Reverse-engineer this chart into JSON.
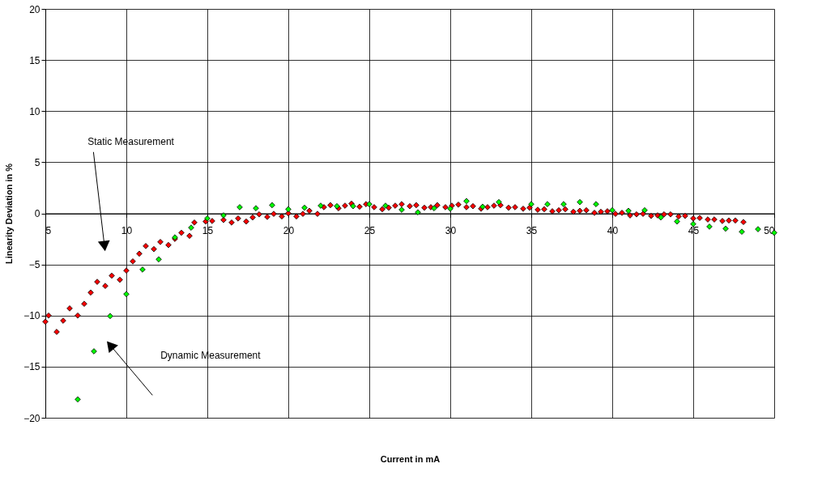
{
  "chart_data": {
    "type": "scatter",
    "xlabel": "Current in mA",
    "ylabel": "Linearity Deviation in %",
    "xlim": [
      5,
      50
    ],
    "xticks": [
      5,
      10,
      15,
      20,
      25,
      30,
      35,
      40,
      45,
      50
    ],
    "ylim": [
      -20,
      20
    ],
    "yticks": [
      -20,
      -15,
      -10,
      -5,
      0,
      5,
      10,
      15,
      20
    ],
    "grid": true,
    "marker": "diamond",
    "annotations": [
      {
        "text": "Static Measurement",
        "x": 8.65,
        "y": -3.2
      },
      "Dynamic Measurement"
    ],
    "series": [
      {
        "color": "#ff0000",
        "x": [
          5.0,
          5.2,
          5.7,
          6.1,
          6.5,
          7.0,
          7.4,
          7.8,
          8.2,
          8.7,
          9.1,
          9.6,
          10.0,
          10.4,
          10.8,
          11.2,
          11.7,
          12.1,
          12.6,
          13.0,
          13.4,
          13.9,
          14.2,
          14.9,
          15.3,
          16.0,
          16.5,
          16.9,
          17.4,
          17.8,
          18.2,
          18.7,
          19.1,
          19.6,
          20.0,
          20.5,
          20.9,
          21.3,
          21.8,
          22.2,
          22.6,
          23.1,
          23.5,
          23.9,
          24.4,
          24.8,
          25.3,
          25.8,
          26.2,
          26.6,
          27.0,
          27.5,
          27.9,
          28.4,
          28.8,
          29.2,
          29.7,
          30.1,
          30.5,
          31.0,
          31.4,
          31.9,
          32.3,
          32.7,
          33.1,
          33.6,
          34.0,
          34.5,
          34.9,
          35.4,
          35.8,
          36.3,
          36.7,
          37.1,
          37.6,
          38.0,
          38.4,
          38.9,
          39.3,
          39.7,
          40.2,
          40.6,
          41.1,
          41.5,
          41.9,
          42.4,
          42.8,
          43.2,
          43.6,
          44.1,
          44.5,
          45.0,
          45.4,
          45.9,
          46.3,
          46.8,
          47.2,
          47.6,
          48.1
        ],
        "values": [
          -10.6,
          -10.0,
          -11.6,
          -10.5,
          -9.3,
          -10.0,
          -8.85,
          -7.75,
          -6.7,
          -7.1,
          -6.1,
          -6.5,
          -5.6,
          -4.7,
          -3.95,
          -3.2,
          -3.5,
          -2.8,
          -3.1,
          -2.5,
          -1.9,
          -2.2,
          -0.9,
          -0.8,
          -0.75,
          -0.65,
          -0.9,
          -0.5,
          -0.8,
          -0.4,
          -0.1,
          -0.35,
          -0.05,
          -0.3,
          0.0,
          -0.3,
          -0.05,
          0.25,
          -0.05,
          0.6,
          0.8,
          0.5,
          0.75,
          0.95,
          0.65,
          0.9,
          0.6,
          0.4,
          0.55,
          0.75,
          0.9,
          0.7,
          0.8,
          0.55,
          0.6,
          0.8,
          0.6,
          0.75,
          0.85,
          0.6,
          0.7,
          0.45,
          0.6,
          0.75,
          0.8,
          0.55,
          0.6,
          0.45,
          0.55,
          0.35,
          0.4,
          0.2,
          0.3,
          0.4,
          0.15,
          0.25,
          0.3,
          0.05,
          0.15,
          0.2,
          -0.05,
          0.05,
          -0.2,
          -0.1,
          -0.05,
          -0.25,
          -0.2,
          -0.1,
          -0.1,
          -0.3,
          -0.25,
          -0.5,
          -0.45,
          -0.6,
          -0.6,
          -0.75,
          -0.7,
          -0.7,
          -0.85
        ]
      },
      {
        "color": "#00ff00",
        "x": [
          7,
          8,
          9,
          10,
          11,
          12,
          13,
          14,
          15,
          16,
          17,
          18,
          19,
          20,
          21,
          22,
          23,
          24,
          25,
          26,
          27,
          28,
          29,
          30,
          31,
          32,
          33,
          35,
          36,
          37,
          38,
          39,
          40,
          41,
          42,
          43,
          44,
          45,
          46,
          47,
          48,
          49,
          50
        ],
        "values": [
          -18.2,
          -13.5,
          -10.05,
          -7.9,
          -5.5,
          -4.5,
          -2.35,
          -1.4,
          -0.5,
          -0.2,
          0.6,
          0.5,
          0.8,
          0.4,
          0.55,
          0.75,
          0.7,
          0.7,
          0.9,
          0.75,
          0.35,
          0.1,
          0.5,
          0.45,
          1.2,
          0.65,
          1.1,
          0.9,
          0.9,
          0.9,
          1.1,
          0.9,
          0.3,
          0.25,
          0.3,
          -0.4,
          -0.8,
          -1.05,
          -1.3,
          -1.5,
          -1.8,
          -1.55,
          -1.9
        ]
      }
    ]
  }
}
